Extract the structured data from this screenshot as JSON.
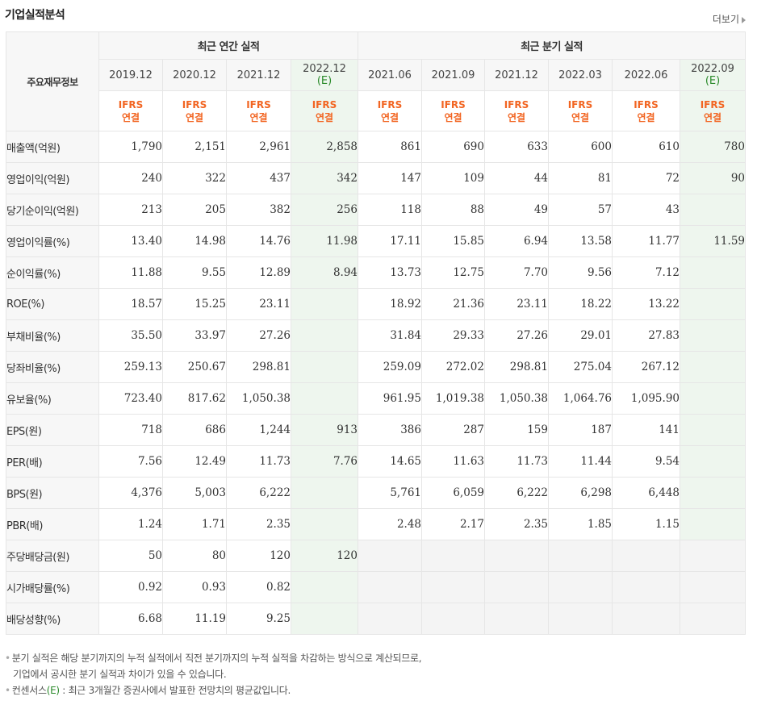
{
  "title": "기업실적분석",
  "more_label": "더보기",
  "header": {
    "row_title": "주요재무정보",
    "annual_group": "최근 연간 실적",
    "quarter_group": "최근 분기 실적",
    "annual_periods": [
      {
        "label": "2019.12",
        "est": ""
      },
      {
        "label": "2020.12",
        "est": ""
      },
      {
        "label": "2021.12",
        "est": ""
      },
      {
        "label": "2022.12",
        "est": "(E)"
      }
    ],
    "quarter_periods": [
      {
        "label": "2021.06",
        "est": ""
      },
      {
        "label": "2021.09",
        "est": ""
      },
      {
        "label": "2021.12",
        "est": ""
      },
      {
        "label": "2022.03",
        "est": ""
      },
      {
        "label": "2022.06",
        "est": ""
      },
      {
        "label": "2022.09",
        "est": "(E)"
      }
    ],
    "ifrs_line1": "IFRS",
    "ifrs_line2": "연결"
  },
  "rows": [
    {
      "label": "매출액(억원)",
      "values": [
        "1,790",
        "2,151",
        "2,961",
        "2,858",
        "861",
        "690",
        "633",
        "600",
        "610",
        "780"
      ]
    },
    {
      "label": "영업이익(억원)",
      "values": [
        "240",
        "322",
        "437",
        "342",
        "147",
        "109",
        "44",
        "81",
        "72",
        "90"
      ]
    },
    {
      "label": "당기순이익(억원)",
      "values": [
        "213",
        "205",
        "382",
        "256",
        "118",
        "88",
        "49",
        "57",
        "43",
        ""
      ]
    },
    {
      "label": "영업이익률(%)",
      "values": [
        "13.40",
        "14.98",
        "14.76",
        "11.98",
        "17.11",
        "15.85",
        "6.94",
        "13.58",
        "11.77",
        "11.59"
      ]
    },
    {
      "label": "순이익률(%)",
      "values": [
        "11.88",
        "9.55",
        "12.89",
        "8.94",
        "13.73",
        "12.75",
        "7.70",
        "9.56",
        "7.12",
        ""
      ]
    },
    {
      "label": "ROE(%)",
      "values": [
        "18.57",
        "15.25",
        "23.11",
        "",
        "18.92",
        "21.36",
        "23.11",
        "18.22",
        "13.22",
        ""
      ]
    },
    {
      "label": "부채비율(%)",
      "values": [
        "35.50",
        "33.97",
        "27.26",
        "",
        "31.84",
        "29.33",
        "27.26",
        "29.01",
        "27.83",
        ""
      ]
    },
    {
      "label": "당좌비율(%)",
      "values": [
        "259.13",
        "250.67",
        "298.81",
        "",
        "259.09",
        "272.02",
        "298.81",
        "275.04",
        "267.12",
        ""
      ]
    },
    {
      "label": "유보율(%)",
      "values": [
        "723.40",
        "817.62",
        "1,050.38",
        "",
        "961.95",
        "1,019.38",
        "1,050.38",
        "1,064.76",
        "1,095.90",
        ""
      ]
    },
    {
      "label": "EPS(원)",
      "values": [
        "718",
        "686",
        "1,244",
        "913",
        "386",
        "287",
        "159",
        "187",
        "141",
        ""
      ]
    },
    {
      "label": "PER(배)",
      "values": [
        "7.56",
        "12.49",
        "11.73",
        "7.76",
        "14.65",
        "11.63",
        "11.73",
        "11.44",
        "9.54",
        ""
      ]
    },
    {
      "label": "BPS(원)",
      "values": [
        "4,376",
        "5,003",
        "6,222",
        "",
        "5,761",
        "6,059",
        "6,222",
        "6,298",
        "6,448",
        ""
      ]
    },
    {
      "label": "PBR(배)",
      "values": [
        "1.24",
        "1.71",
        "2.35",
        "",
        "2.48",
        "2.17",
        "2.35",
        "1.85",
        "1.15",
        ""
      ]
    },
    {
      "label": "주당배당금(원)",
      "values": [
        "50",
        "80",
        "120",
        "120",
        "",
        "",
        "",
        "",
        "",
        ""
      ]
    },
    {
      "label": "시가배당률(%)",
      "values": [
        "0.92",
        "0.93",
        "0.82",
        "",
        "",
        "",
        "",
        "",
        "",
        ""
      ]
    },
    {
      "label": "배당성향(%)",
      "values": [
        "6.68",
        "11.19",
        "9.25",
        "",
        "",
        "",
        "",
        "",
        "",
        ""
      ]
    }
  ],
  "notes": {
    "line1": "분기 실적은 해당 분기까지의 누적 실적에서 직전 분기까지의 누적 실적을 차감하는 방식으로 계산되므로,",
    "line2": "기업에서 공시한 분기 실적과 차이가 있을 수 있습니다.",
    "line3_prefix": "컨센서스",
    "line3_e": "(E)",
    "line3_suffix": " : 최근 3개월간 증권사에서 발표한 전망치의 평균값입니다."
  }
}
